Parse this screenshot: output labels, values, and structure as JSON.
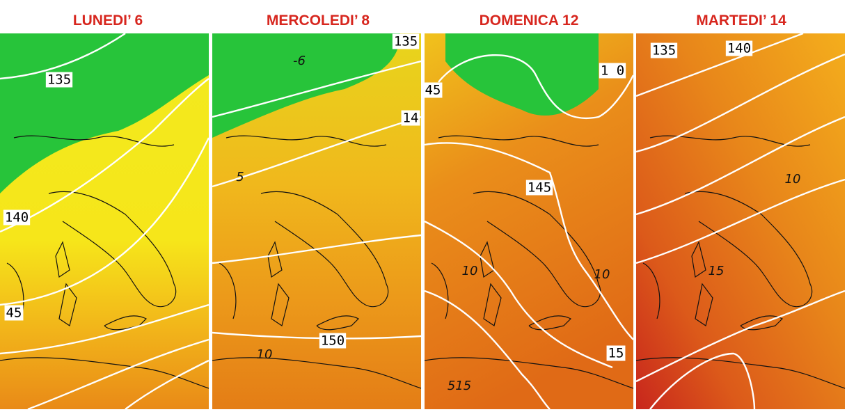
{
  "panels": [
    {
      "title": "LUNEDI’ 6",
      "labels": [
        "135",
        "140",
        "45"
      ]
    },
    {
      "title": "MERCOLEDI’ 8",
      "labels": [
        "135",
        "14",
        "150",
        "-6",
        "5",
        "10"
      ]
    },
    {
      "title": "DOMENICA 12",
      "labels": [
        "45",
        "1 0",
        "145",
        "15",
        "10",
        "10",
        "515"
      ]
    },
    {
      "title": "MARTEDI’ 14",
      "labels": [
        "135",
        "140",
        "10",
        "15"
      ]
    }
  ]
}
